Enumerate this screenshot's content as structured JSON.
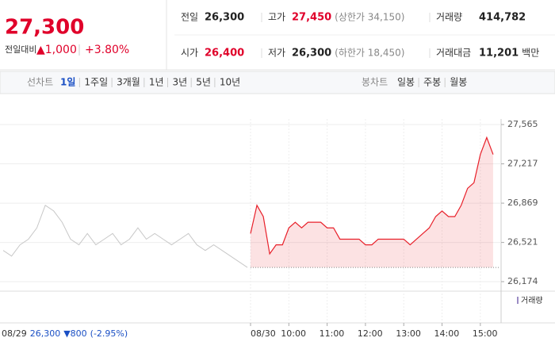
{
  "header": {
    "price": "27,300",
    "change_label": "전일대비",
    "change": "▲1,000",
    "change_rate": "+3.80%",
    "stats": [
      {
        "label": "전일",
        "value": "26,300"
      },
      {
        "label": "고가",
        "value": "27,450",
        "note": "(상한가 34,150)"
      },
      {
        "label": "거래량",
        "value": "414,782"
      },
      {
        "label": "시가",
        "value": "26,400"
      },
      {
        "label": "저가",
        "value": "26,300",
        "note": "(하한가 18,450)"
      },
      {
        "label": "거래대금",
        "value": "11,201",
        "note": "백만"
      }
    ]
  },
  "tabs": {
    "line_label": "선차트",
    "line": [
      "1일",
      "1주일",
      "3개월",
      "1년",
      "3년",
      "5년",
      "10년"
    ],
    "active": "1일",
    "candle_label": "봉차트",
    "candle": [
      "일봉",
      "주봉",
      "월봉"
    ]
  },
  "chart_data": {
    "type": "line",
    "ylim": [
      26174,
      27565
    ],
    "yticks": [
      {
        "value": 26174,
        "label": "26,174"
      },
      {
        "value": 26521,
        "label": "26,521"
      },
      {
        "value": 26869,
        "label": "26,869"
      },
      {
        "value": 27217,
        "label": "27,217"
      },
      {
        "value": 27565,
        "label": "27,565"
      }
    ],
    "xticks": [
      {
        "value": "09:00",
        "label": "08/30"
      },
      "10:00",
      "11:00",
      "12:00",
      "13:00",
      "14:00",
      "15:00"
    ],
    "xlim": [
      "09:00",
      "15:30"
    ],
    "baseline": 26300,
    "previous": {
      "date": "08/29",
      "close": "26,300",
      "change": "▼800",
      "rate": "(-2.95%)",
      "color": "#c8c8c8",
      "values": [
        26450,
        26400,
        26500,
        26550,
        26650,
        26850,
        26800,
        26700,
        26550,
        26500,
        26600,
        26500,
        26550,
        26600,
        26500,
        26550,
        26650,
        26550,
        26600,
        26550,
        26500,
        26550,
        26600,
        26500,
        26450,
        26500,
        26450,
        26400,
        26350,
        26300
      ]
    },
    "series": [
      {
        "color": "#e8202a",
        "x": [
          "09:00",
          "09:10",
          "09:20",
          "09:30",
          "09:40",
          "09:50",
          "10:00",
          "10:10",
          "10:20",
          "10:30",
          "10:40",
          "10:50",
          "11:00",
          "11:10",
          "11:20",
          "11:30",
          "11:40",
          "11:50",
          "12:00",
          "12:10",
          "12:20",
          "12:30",
          "12:40",
          "12:50",
          "13:00",
          "13:10",
          "13:20",
          "13:30",
          "13:40",
          "13:50",
          "14:00",
          "14:10",
          "14:20",
          "14:30",
          "14:40",
          "14:50",
          "15:00",
          "15:10",
          "15:20"
        ],
        "values": [
          26600,
          26850,
          26750,
          26420,
          26500,
          26500,
          26650,
          26700,
          26650,
          26700,
          26700,
          26700,
          26650,
          26650,
          26550,
          26550,
          26550,
          26550,
          26500,
          26500,
          26550,
          26550,
          26550,
          26550,
          26550,
          26500,
          26550,
          26600,
          26650,
          26750,
          26800,
          26750,
          26750,
          26850,
          27000,
          27050,
          27300,
          27450,
          27300
        ]
      }
    ],
    "volume_label": "거래량"
  }
}
